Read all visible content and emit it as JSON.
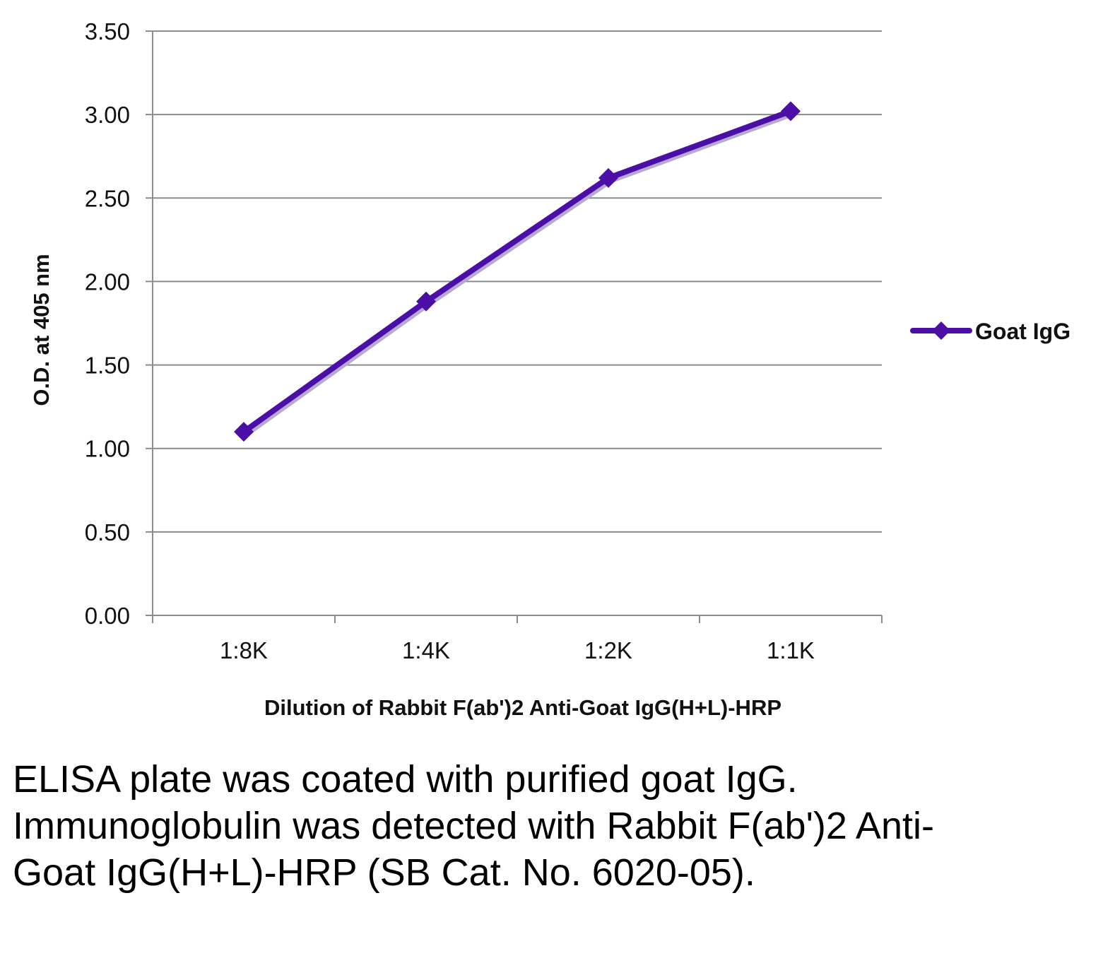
{
  "chart_data": {
    "type": "line",
    "categories": [
      "1:8K",
      "1:4K",
      "1:2K",
      "1:1K"
    ],
    "series": [
      {
        "name": "Goat IgG",
        "values": [
          1.1,
          1.88,
          2.62,
          3.02
        ],
        "color": "#4b0fa8",
        "marker": "diamond"
      }
    ],
    "title": "",
    "xlabel": "Dilution of Rabbit F(ab')2 Anti-Goat IgG(H+L)-HRP",
    "ylabel": "O.D. at 405 nm",
    "ylim": [
      0,
      3.5
    ],
    "yticks": [
      "0.00",
      "0.50",
      "1.00",
      "1.50",
      "2.00",
      "2.50",
      "3.00",
      "3.50"
    ],
    "grid": true,
    "legend": "right"
  },
  "caption": "ELISA plate was coated with purified goat IgG.  Immunoglobulin was detected with Rabbit F(ab')2 Anti-Goat IgG(H+L)-HRP (SB Cat. No. 6020-05)."
}
